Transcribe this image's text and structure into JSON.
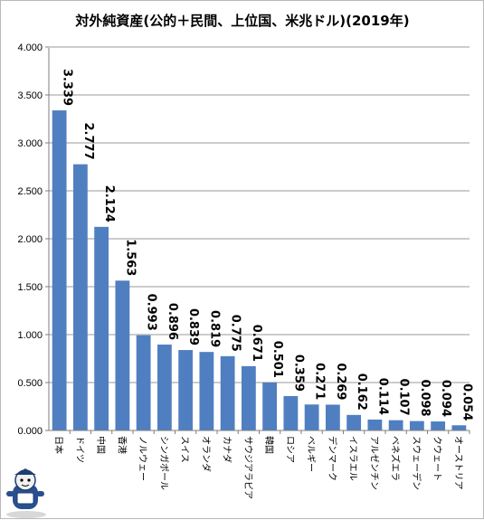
{
  "chart_data": {
    "type": "bar",
    "title": "対外純資産(公的＋民間、上位国、米兆ドル)(2019年)",
    "xlabel": "",
    "ylabel": "",
    "ylim": [
      0,
      4.0
    ],
    "yticks": [
      "0.000",
      "0.500",
      "1.000",
      "1.500",
      "2.000",
      "2.500",
      "3.000",
      "3.500",
      "4.000"
    ],
    "grid": true,
    "legend": "none",
    "categories": [
      "日本",
      "ドイツ",
      "中国",
      "香港",
      "ノルウェー",
      "シンガポール",
      "スイス",
      "オランダ",
      "カナダ",
      "サウジアラビア",
      "韓国",
      "ロシア",
      "ベルギー",
      "デンマーク",
      "イスラエル",
      "アルゼンチン",
      "ベネズエラ",
      "スウェーデン",
      "クウェート",
      "オーストリア"
    ],
    "values": [
      3.339,
      2.777,
      2.124,
      1.563,
      0.993,
      0.896,
      0.839,
      0.819,
      0.775,
      0.671,
      0.501,
      0.359,
      0.271,
      0.269,
      0.162,
      0.114,
      0.107,
      0.098,
      0.094,
      0.054
    ],
    "data_labels": [
      "3.339",
      "2.777",
      "2.124",
      "1.563",
      "0.993",
      "0.896",
      "0.839",
      "0.819",
      "0.775",
      "0.671",
      "0.501",
      "0.359",
      "0.271",
      "0.269",
      "0.162",
      "0.114",
      "0.107",
      "0.098",
      "0.094",
      "0.054"
    ],
    "bar_color": "#4f7fc0"
  },
  "mascot": {
    "name": "mascot-icon"
  }
}
